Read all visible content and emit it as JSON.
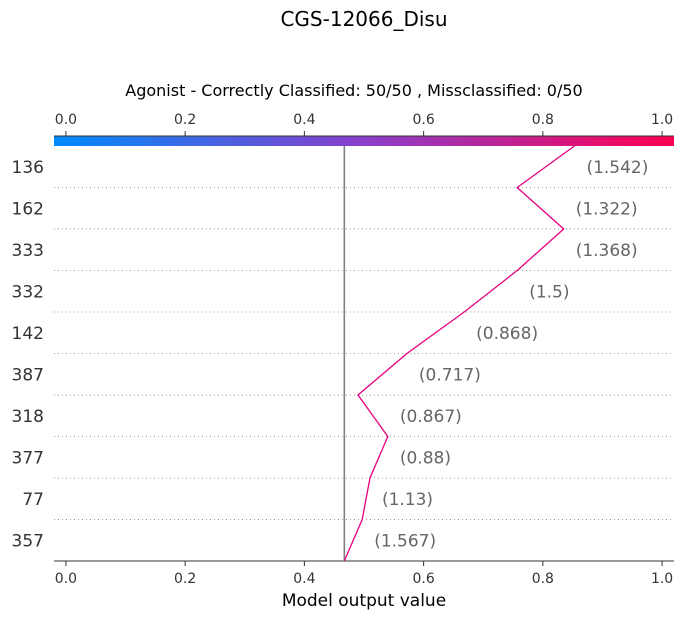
{
  "title": "CGS-12066_Disu",
  "chart_data": {
    "type": "line",
    "subtitle": "Agonist - Correctly Classified: 50/50 , Missclassified: 0/50",
    "xlabel": "Model output value",
    "xlim": [
      -0.02,
      1.02
    ],
    "x_ticks": [
      "0.0",
      "0.2",
      "0.4",
      "0.6",
      "0.8",
      "1.0"
    ],
    "base_value": 0.467,
    "features": [
      "136",
      "162",
      "333",
      "332",
      "142",
      "387",
      "318",
      "377",
      "77",
      "357"
    ],
    "feature_values": [
      "(1.542)",
      "(1.322)",
      "(1.368)",
      "(1.5)",
      "(0.868)",
      "(0.717)",
      "(0.867)",
      "(0.88)",
      "(1.13)",
      "(1.567)"
    ],
    "path_x": [
      0.853,
      0.757,
      0.835,
      0.757,
      0.668,
      0.572,
      0.49,
      0.54,
      0.51,
      0.497,
      0.467
    ],
    "line_color": "#e6007e",
    "colorbar": [
      "#008bfb",
      "#8a3ecb",
      "#ff0051"
    ],
    "grid": "dotted rows"
  }
}
